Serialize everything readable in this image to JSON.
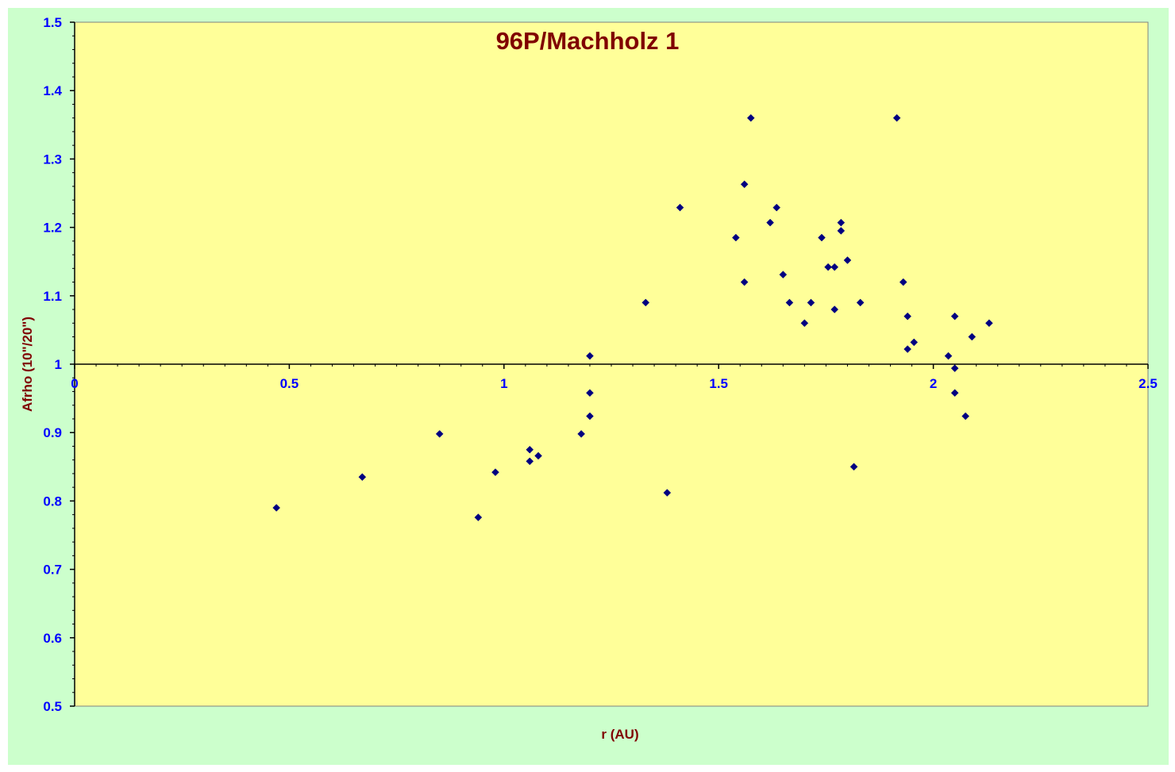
{
  "colors": {
    "chart_area_bg": "#ccffcc",
    "plot_bg": "#ffff99",
    "marker": "#000080",
    "tick_label": "#0000ff",
    "title": "#800000",
    "axis_title": "#800000",
    "axis_line": "#000000"
  },
  "chart_data": {
    "type": "scatter",
    "title": "96P/Machholz 1",
    "xlabel": "r (AU)",
    "ylabel": "Afrho (10\"/20\")",
    "xlim": [
      0,
      2.5
    ],
    "ylim": [
      0.5,
      1.5
    ],
    "x_cross_at_y": 1,
    "x_ticks": [
      "0",
      "0.5",
      "1",
      "1.5",
      "2",
      "2.5"
    ],
    "y_ticks": [
      "0.5",
      "0.6",
      "0.7",
      "0.8",
      "0.9",
      "1",
      "1.1",
      "1.2",
      "1.3",
      "1.4",
      "1.5"
    ],
    "marker": "diamond",
    "legend": "none",
    "grid": false,
    "series": [
      {
        "points": [
          [
            0.47,
            0.79
          ],
          [
            0.67,
            0.835
          ],
          [
            0.85,
            0.898
          ],
          [
            0.94,
            0.776
          ],
          [
            0.98,
            0.842
          ],
          [
            1.06,
            0.875
          ],
          [
            1.06,
            0.858
          ],
          [
            1.08,
            0.866
          ],
          [
            1.18,
            0.898
          ],
          [
            1.2,
            1.012
          ],
          [
            1.2,
            0.958
          ],
          [
            1.2,
            0.924
          ],
          [
            1.33,
            1.09
          ],
          [
            1.38,
            0.812
          ],
          [
            1.41,
            1.229
          ],
          [
            1.54,
            1.185
          ],
          [
            1.56,
            1.263
          ],
          [
            1.56,
            1.12
          ],
          [
            1.575,
            1.36
          ],
          [
            1.62,
            1.207
          ],
          [
            1.635,
            1.229
          ],
          [
            1.65,
            1.131
          ],
          [
            1.665,
            1.09
          ],
          [
            1.7,
            1.06
          ],
          [
            1.715,
            1.09
          ],
          [
            1.74,
            1.185
          ],
          [
            1.755,
            1.142
          ],
          [
            1.77,
            1.142
          ],
          [
            1.77,
            1.08
          ],
          [
            1.785,
            1.207
          ],
          [
            1.785,
            1.195
          ],
          [
            1.8,
            1.152
          ],
          [
            1.815,
            0.85
          ],
          [
            1.83,
            1.09
          ],
          [
            1.915,
            1.36
          ],
          [
            1.93,
            1.12
          ],
          [
            1.94,
            1.07
          ],
          [
            1.94,
            1.022
          ],
          [
            1.955,
            1.032
          ],
          [
            2.035,
            1.012
          ],
          [
            2.05,
            1.07
          ],
          [
            2.05,
            0.994
          ],
          [
            2.05,
            0.958
          ],
          [
            2.075,
            0.924
          ],
          [
            2.09,
            1.04
          ],
          [
            2.13,
            1.06
          ]
        ]
      }
    ]
  }
}
